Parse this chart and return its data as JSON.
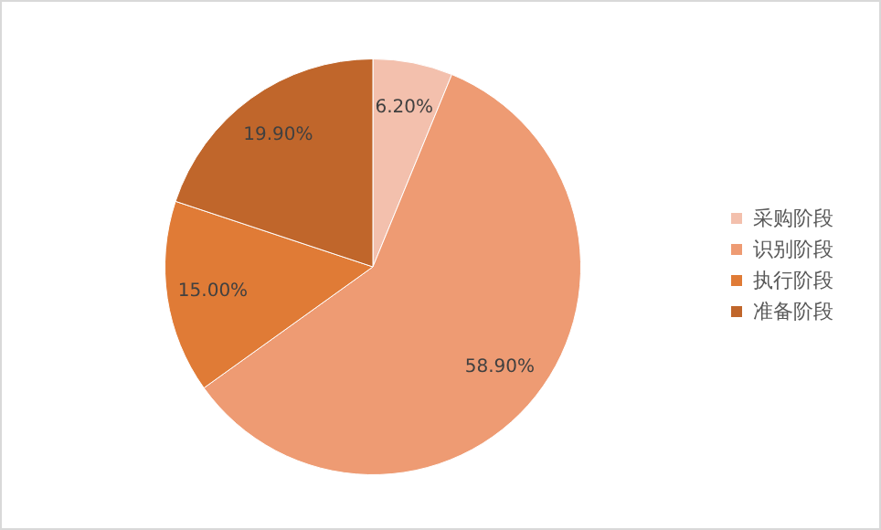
{
  "chart_data": {
    "type": "pie",
    "categories": [
      "采购阶段",
      "识别阶段",
      "执行阶段",
      "准备阶段"
    ],
    "values": [
      6.2,
      58.9,
      15.0,
      19.9
    ],
    "value_labels": [
      "6.20%",
      "58.90%",
      "15.00%",
      "19.90%"
    ],
    "colors": [
      "#f3c0ad",
      "#ee9b73",
      "#e07b36",
      "#c0662b"
    ],
    "legend": "right"
  }
}
